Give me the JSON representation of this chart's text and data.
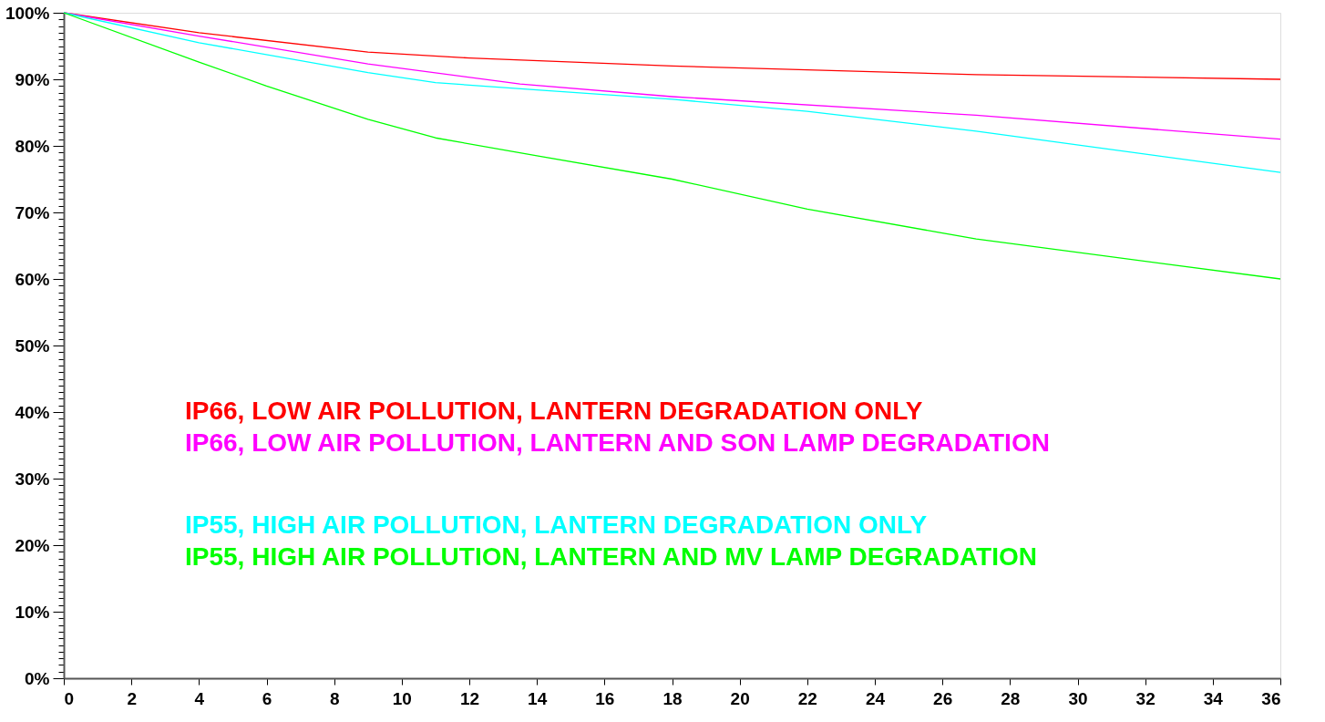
{
  "chart_data": {
    "type": "line",
    "legend": false,
    "grid": false,
    "marker": "none",
    "line_style": "solid",
    "xlim": [
      0,
      36
    ],
    "xticks": [
      0,
      2,
      4,
      6,
      8,
      10,
      12,
      14,
      16,
      18,
      20,
      22,
      24,
      26,
      28,
      30,
      32,
      34,
      36
    ],
    "ylim": [
      0,
      100
    ],
    "yticks": [
      {
        "value": 0,
        "label": "0%"
      },
      {
        "value": 1,
        "label": null
      },
      {
        "value": 2,
        "label": null
      },
      {
        "value": 3,
        "label": null
      },
      {
        "value": 4,
        "label": null
      },
      {
        "value": 5,
        "label": null
      },
      {
        "value": 6,
        "label": null
      },
      {
        "value": 7,
        "label": null
      },
      {
        "value": 8,
        "label": null
      },
      {
        "value": 9,
        "label": null
      },
      {
        "value": 10,
        "label": "10%"
      },
      {
        "value": 11,
        "label": null
      },
      {
        "value": 12,
        "label": null
      },
      {
        "value": 13,
        "label": null
      },
      {
        "value": 14,
        "label": null
      },
      {
        "value": 15,
        "label": null
      },
      {
        "value": 16,
        "label": null
      },
      {
        "value": 17,
        "label": null
      },
      {
        "value": 18,
        "label": null
      },
      {
        "value": 19,
        "label": null
      },
      {
        "value": 20,
        "label": "20%"
      },
      {
        "value": 21,
        "label": null
      },
      {
        "value": 22,
        "label": null
      },
      {
        "value": 23,
        "label": null
      },
      {
        "value": 24,
        "label": null
      },
      {
        "value": 25,
        "label": null
      },
      {
        "value": 26,
        "label": null
      },
      {
        "value": 27,
        "label": null
      },
      {
        "value": 28,
        "label": null
      },
      {
        "value": 29,
        "label": null
      },
      {
        "value": 30,
        "label": "30%"
      },
      {
        "value": 31,
        "label": null
      },
      {
        "value": 32,
        "label": null
      },
      {
        "value": 33,
        "label": null
      },
      {
        "value": 34,
        "label": null
      },
      {
        "value": 35,
        "label": null
      },
      {
        "value": 36,
        "label": null
      },
      {
        "value": 37,
        "label": null
      },
      {
        "value": 38,
        "label": null
      },
      {
        "value": 39,
        "label": null
      },
      {
        "value": 40,
        "label": "40%"
      },
      {
        "value": 41,
        "label": null
      },
      {
        "value": 42,
        "label": null
      },
      {
        "value": 43,
        "label": null
      },
      {
        "value": 44,
        "label": null
      },
      {
        "value": 45,
        "label": null
      },
      {
        "value": 46,
        "label": null
      },
      {
        "value": 47,
        "label": null
      },
      {
        "value": 48,
        "label": null
      },
      {
        "value": 49,
        "label": null
      },
      {
        "value": 50,
        "label": "50%"
      },
      {
        "value": 51,
        "label": null
      },
      {
        "value": 52,
        "label": null
      },
      {
        "value": 53,
        "label": null
      },
      {
        "value": 54,
        "label": null
      },
      {
        "value": 55,
        "label": null
      },
      {
        "value": 56,
        "label": null
      },
      {
        "value": 57,
        "label": null
      },
      {
        "value": 58,
        "label": null
      },
      {
        "value": 59,
        "label": null
      },
      {
        "value": 60,
        "label": "60%"
      },
      {
        "value": 61,
        "label": null
      },
      {
        "value": 62,
        "label": null
      },
      {
        "value": 63,
        "label": null
      },
      {
        "value": 64,
        "label": null
      },
      {
        "value": 65,
        "label": null
      },
      {
        "value": 66,
        "label": null
      },
      {
        "value": 67,
        "label": null
      },
      {
        "value": 68,
        "label": null
      },
      {
        "value": 69,
        "label": null
      },
      {
        "value": 70,
        "label": "70%"
      },
      {
        "value": 71,
        "label": null
      },
      {
        "value": 72,
        "label": null
      },
      {
        "value": 73,
        "label": null
      },
      {
        "value": 74,
        "label": null
      },
      {
        "value": 75,
        "label": null
      },
      {
        "value": 76,
        "label": null
      },
      {
        "value": 77,
        "label": null
      },
      {
        "value": 78,
        "label": null
      },
      {
        "value": 79,
        "label": null
      },
      {
        "value": 80,
        "label": "80%"
      },
      {
        "value": 81,
        "label": null
      },
      {
        "value": 82,
        "label": null
      },
      {
        "value": 83,
        "label": null
      },
      {
        "value": 84,
        "label": null
      },
      {
        "value": 85,
        "label": null
      },
      {
        "value": 86,
        "label": null
      },
      {
        "value": 87,
        "label": null
      },
      {
        "value": 88,
        "label": null
      },
      {
        "value": 89,
        "label": null
      },
      {
        "value": 90,
        "label": "90%"
      },
      {
        "value": 91,
        "label": null
      },
      {
        "value": 92,
        "label": null
      },
      {
        "value": 93,
        "label": null
      },
      {
        "value": 94,
        "label": null
      },
      {
        "value": 95,
        "label": null
      },
      {
        "value": 96,
        "label": null
      },
      {
        "value": 97,
        "label": null
      },
      {
        "value": 98,
        "label": null
      },
      {
        "value": 99,
        "label": null
      },
      {
        "value": 100,
        "label": "100%"
      }
    ],
    "series": [
      {
        "name": "IP66, LOW  AIR POLLUTION, LANTERN DEGRADATION ONLY",
        "color": "#ff0000",
        "x": [
          0,
          4,
          9,
          12,
          18,
          27,
          36
        ],
        "values": [
          100,
          97,
          94.1,
          93.2,
          92,
          90.7,
          90
        ]
      },
      {
        "name": "IP66, LOW  AIR POLLUTION, LANTERN AND SON LAMP DEGRADATION",
        "color": "#ff00ff",
        "x": [
          0,
          4,
          9,
          13.5,
          18,
          27,
          36
        ],
        "values": [
          100,
          96.5,
          92.3,
          89.3,
          87.4,
          84.6,
          81
        ]
      },
      {
        "name": "IP55, HIGH AIR POLLUTION, LANTERN DEGRADATION ONLY",
        "color": "#00ffff",
        "x": [
          0,
          4,
          9,
          11,
          14,
          18,
          22,
          27,
          36
        ],
        "values": [
          100,
          95.5,
          91,
          89.5,
          88.4,
          87,
          85.2,
          82.2,
          76
        ]
      },
      {
        "name": "IP55, HIGH AIR POLLUTION, LANTERN AND MV LAMP DEGRADATION",
        "color": "#00ff00",
        "x": [
          0,
          4,
          6,
          9,
          11,
          14,
          18,
          22,
          27,
          36
        ],
        "values": [
          100,
          92.6,
          89,
          84,
          81.2,
          78.5,
          75,
          70.5,
          66,
          60
        ]
      }
    ]
  }
}
